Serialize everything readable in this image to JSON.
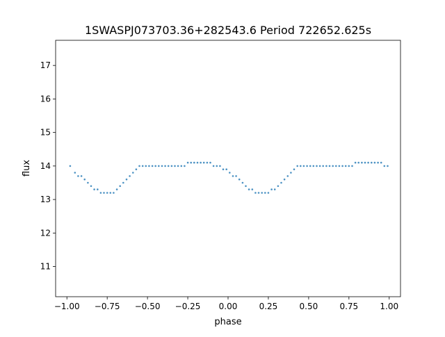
{
  "chart_data": {
    "type": "scatter",
    "title": "1SWASPJ073703.36+282543.6 Period 722652.625s",
    "xlabel": "phase",
    "ylabel": "flux",
    "xlim": [
      -1.07,
      1.07
    ],
    "ylim": [
      10.1,
      17.75
    ],
    "x_ticks": [
      -1.0,
      -0.75,
      -0.5,
      -0.25,
      0.0,
      0.25,
      0.5,
      0.75,
      1.0
    ],
    "x_tick_labels": [
      "−1.00",
      "−0.75",
      "−0.50",
      "−0.25",
      "0.00",
      "0.25",
      "0.50",
      "0.75",
      "1.00"
    ],
    "y_ticks": [
      11,
      12,
      13,
      14,
      15,
      16,
      17
    ],
    "y_tick_labels": [
      "11",
      "12",
      "13",
      "14",
      "15",
      "16",
      "17"
    ],
    "grid": false,
    "series_color": "#1f77b4",
    "series": [
      {
        "x": [
          -0.98,
          -0.95,
          -0.93,
          -0.91,
          -0.89,
          -0.87,
          -0.85,
          -0.83,
          -0.81,
          -0.79,
          -0.77,
          -0.75,
          -0.73,
          -0.71,
          -0.69,
          -0.67,
          -0.65,
          -0.63,
          -0.61,
          -0.59,
          -0.57,
          -0.55,
          -0.53,
          -0.51,
          -0.49,
          -0.47,
          -0.45,
          -0.43,
          -0.41,
          -0.39,
          -0.37,
          -0.35,
          -0.33,
          -0.31,
          -0.29,
          -0.27,
          -0.25,
          -0.23,
          -0.21,
          -0.19,
          -0.17,
          -0.15,
          -0.13,
          -0.11,
          -0.09,
          -0.07,
          -0.05,
          -0.03,
          -0.01,
          0.01,
          0.03,
          0.05,
          0.07,
          0.09,
          0.11,
          0.13,
          0.15,
          0.17,
          0.19,
          0.21,
          0.23,
          0.25,
          0.27,
          0.29,
          0.31,
          0.33,
          0.35,
          0.37,
          0.39,
          0.41,
          0.43,
          0.45,
          0.47,
          0.49,
          0.51,
          0.53,
          0.55,
          0.57,
          0.59,
          0.61,
          0.63,
          0.65,
          0.67,
          0.69,
          0.71,
          0.73,
          0.75,
          0.77,
          0.79,
          0.81,
          0.83,
          0.85,
          0.87,
          0.89,
          0.91,
          0.93,
          0.95,
          0.97,
          0.99
        ],
        "y": [
          14.0,
          13.8,
          13.7,
          13.7,
          13.6,
          13.5,
          13.4,
          13.3,
          13.3,
          13.2,
          13.2,
          13.2,
          13.2,
          13.2,
          13.3,
          13.4,
          13.5,
          13.6,
          13.7,
          13.8,
          13.9,
          14.0,
          14.0,
          14.0,
          14.0,
          14.0,
          14.0,
          14.0,
          14.0,
          14.0,
          14.0,
          14.0,
          14.0,
          14.0,
          14.0,
          14.0,
          14.1,
          14.1,
          14.1,
          14.1,
          14.1,
          14.1,
          14.1,
          14.1,
          14.0,
          14.0,
          14.0,
          13.9,
          13.9,
          13.8,
          13.7,
          13.7,
          13.6,
          13.5,
          13.4,
          13.3,
          13.3,
          13.2,
          13.2,
          13.2,
          13.2,
          13.2,
          13.3,
          13.3,
          13.4,
          13.5,
          13.6,
          13.7,
          13.8,
          13.9,
          14.0,
          14.0,
          14.0,
          14.0,
          14.0,
          14.0,
          14.0,
          14.0,
          14.0,
          14.0,
          14.0,
          14.0,
          14.0,
          14.0,
          14.0,
          14.0,
          14.0,
          14.0,
          14.1,
          14.1,
          14.1,
          14.1,
          14.1,
          14.1,
          14.1,
          14.1,
          14.1,
          14.0,
          14.0
        ]
      }
    ]
  }
}
